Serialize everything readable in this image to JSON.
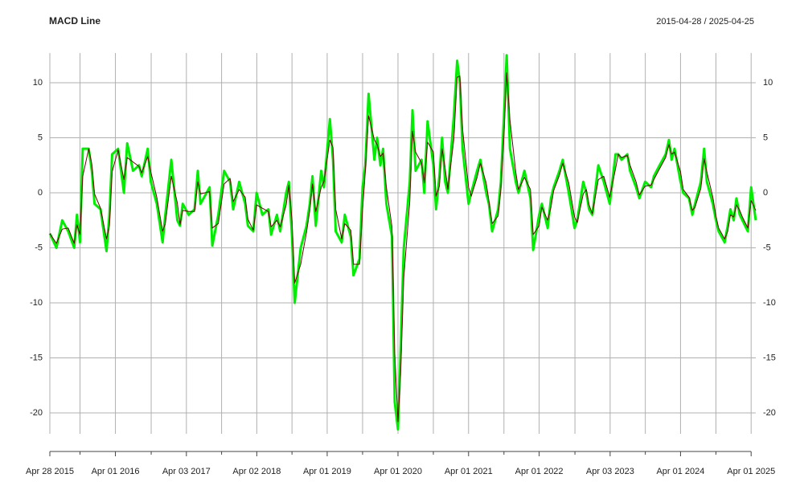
{
  "chart_data": {
    "type": "line",
    "title": "MACD Line",
    "subtitle": "2015-04-28 / 2025-04-25",
    "x": [
      "2015-04-28",
      "2015-06-01",
      "2015-07-01",
      "2015-08-01",
      "2015-09-01",
      "2015-09-15",
      "2015-10-01",
      "2015-10-15",
      "2015-11-15",
      "2015-12-01",
      "2015-12-15",
      "2016-01-15",
      "2016-02-15",
      "2016-03-01",
      "2016-03-15",
      "2016-04-15",
      "2016-05-15",
      "2016-06-01",
      "2016-07-01",
      "2016-08-01",
      "2016-08-15",
      "2016-09-15",
      "2016-10-01",
      "2016-11-01",
      "2016-12-01",
      "2016-12-15",
      "2017-01-15",
      "2017-02-15",
      "2017-03-01",
      "2017-03-15",
      "2017-04-15",
      "2017-05-15",
      "2017-06-01",
      "2017-06-15",
      "2017-08-01",
      "2017-08-15",
      "2017-09-15",
      "2017-10-15",
      "2017-11-15",
      "2017-12-01",
      "2018-01-01",
      "2018-02-01",
      "2018-02-15",
      "2018-03-15",
      "2018-04-01",
      "2018-05-01",
      "2018-06-01",
      "2018-06-15",
      "2018-07-15",
      "2018-08-01",
      "2018-09-01",
      "2018-09-15",
      "2018-10-01",
      "2018-10-15",
      "2018-11-15",
      "2018-12-15",
      "2019-01-01",
      "2019-01-15",
      "2019-02-01",
      "2019-03-01",
      "2019-03-15",
      "2019-04-15",
      "2019-05-01",
      "2019-05-15",
      "2019-06-15",
      "2019-07-01",
      "2019-08-01",
      "2019-08-15",
      "2019-09-15",
      "2019-10-01",
      "2019-10-15",
      "2019-11-01",
      "2019-12-01",
      "2019-12-15",
      "2020-01-01",
      "2020-01-15",
      "2020-02-01",
      "2020-03-01",
      "2020-03-15",
      "2020-04-01",
      "2020-04-15",
      "2020-05-01",
      "2020-06-01",
      "2020-06-15",
      "2020-07-01",
      "2020-08-01",
      "2020-08-15",
      "2020-09-01",
      "2020-10-01",
      "2020-10-15",
      "2020-11-01",
      "2020-11-15",
      "2020-12-01",
      "2020-12-15",
      "2021-01-15",
      "2021-02-01",
      "2021-02-15",
      "2021-03-01",
      "2021-04-01",
      "2021-04-15",
      "2021-05-15",
      "2021-06-01",
      "2021-07-01",
      "2021-07-15",
      "2021-08-01",
      "2021-09-01",
      "2021-09-15",
      "2021-10-01",
      "2021-10-15",
      "2021-11-01",
      "2021-12-01",
      "2021-12-15",
      "2022-01-15",
      "2022-02-15",
      "2022-03-01",
      "2022-04-01",
      "2022-04-15",
      "2022-05-15",
      "2022-06-01",
      "2022-06-15",
      "2022-07-15",
      "2022-08-01",
      "2022-09-01",
      "2022-10-01",
      "2022-10-15",
      "2022-11-15",
      "2022-12-01",
      "2022-12-15",
      "2023-01-01",
      "2023-02-01",
      "2023-03-01",
      "2023-04-01",
      "2023-05-01",
      "2023-05-15",
      "2023-06-01",
      "2023-07-01",
      "2023-07-15",
      "2023-08-15",
      "2023-09-01",
      "2023-10-01",
      "2023-11-01",
      "2023-11-15",
      "2023-12-15",
      "2024-01-15",
      "2024-02-01",
      "2024-02-15",
      "2024-03-01",
      "2024-04-01",
      "2024-04-15",
      "2024-05-15",
      "2024-06-01",
      "2024-06-15",
      "2024-07-15",
      "2024-08-01",
      "2024-08-15",
      "2024-09-15",
      "2024-10-01",
      "2024-10-15",
      "2024-11-15",
      "2024-12-01",
      "2024-12-15",
      "2025-01-01",
      "2025-01-15",
      "2025-02-01",
      "2025-02-15",
      "2025-03-15",
      "2025-04-01",
      "2025-04-25"
    ],
    "series": [
      {
        "color": "#00ee00",
        "width": 3,
        "values": [
          -3.7,
          -5,
          -2.5,
          -3.5,
          -5,
          -2,
          -4.5,
          4,
          4,
          2,
          -1,
          -1.5,
          -5.3,
          -2,
          3.5,
          4,
          0,
          4.5,
          2,
          2.5,
          1.5,
          4,
          1,
          -1,
          -4.5,
          -2,
          3,
          -2.5,
          -3,
          -1,
          -2,
          -1.5,
          2,
          -1,
          0.5,
          -4.8,
          -2,
          2,
          1,
          -1.5,
          1,
          -1,
          -3,
          -3.5,
          0,
          -2,
          -1.5,
          -3.8,
          -2,
          -3.5,
          0,
          1,
          -4,
          -10,
          -5,
          -3,
          -1,
          1.5,
          -3,
          2,
          0.5,
          6.7,
          3,
          -3.5,
          -4.5,
          -2,
          -4,
          -7.5,
          -6,
          0.5,
          2.5,
          9,
          3,
          5,
          2.5,
          4,
          -1,
          -4,
          -19,
          -21.5,
          -14,
          -5,
          1,
          7.5,
          2,
          3,
          0,
          6.5,
          2.5,
          -1.5,
          1.5,
          5,
          1,
          0,
          7,
          12,
          10,
          4,
          -1,
          0,
          2,
          3,
          0,
          -1,
          -3.5,
          -1.5,
          1,
          7,
          12.5,
          4,
          1,
          0,
          2,
          -0.5,
          -5.2,
          -2,
          -1,
          -3.2,
          -0.5,
          0.5,
          2,
          3,
          0,
          -3.2,
          -2.5,
          1,
          0,
          -1.5,
          -2,
          2.5,
          1,
          -1,
          3.5,
          3.5,
          3,
          3.5,
          2,
          0.5,
          -0.5,
          1,
          0.5,
          1.5,
          2.5,
          3.5,
          4.8,
          3,
          4,
          1,
          0,
          -0.5,
          -2,
          -1,
          1,
          4,
          1,
          -1,
          -2.5,
          -3.5,
          -4.5,
          -3,
          -1.5,
          -2.5,
          -0.5,
          -2,
          -2.5,
          -3.5,
          0.5,
          -2.5
        ]
      },
      {
        "color": "#660000",
        "width": 1,
        "values": [
          -3.7,
          -4.6,
          -3.3,
          -3.2,
          -4.6,
          -2.9,
          -3.8,
          1.5,
          4,
          2.6,
          -0.1,
          -1.4,
          -4.2,
          -3,
          1.9,
          3.9,
          1.2,
          3.2,
          2.8,
          2.4,
          1.8,
          3.3,
          1.9,
          -0.4,
          -3.5,
          -2.8,
          1.5,
          -0.9,
          -2.9,
          -1.6,
          -1.7,
          -1.7,
          1,
          -0.1,
          0.1,
          -3.2,
          -2.8,
          0.8,
          1.3,
          -0.8,
          0.3,
          -0.4,
          -2.4,
          -3.4,
          -1.1,
          -1.4,
          -1.7,
          -3.1,
          -2.5,
          -3.1,
          -1.1,
          0.7,
          -2.5,
          -8.2,
          -6.5,
          -3.6,
          -1.6,
          0.8,
          -1.7,
          0.5,
          1,
          4.8,
          4.1,
          -1.5,
          -4.2,
          -2.8,
          -3.4,
          -6.5,
          -6.5,
          -1.5,
          1.9,
          7,
          4.8,
          4.4,
          3.3,
          3.6,
          0.5,
          -3.1,
          -14.5,
          -20.8,
          -16.3,
          -7.7,
          -0.8,
          5.6,
          3.7,
          2.7,
          0.9,
          4.6,
          3.7,
          -0.3,
          0.6,
          4,
          2.2,
          0.3,
          4.9,
          10.5,
          10.6,
          5.8,
          0.5,
          -0.3,
          1.4,
          2.7,
          0.9,
          -0.7,
          -2.8,
          -2.1,
          0.3,
          5.2,
          10.9,
          6.6,
          1.9,
          0.3,
          1.4,
          0.3,
          -3.8,
          -3,
          -1.3,
          -2.5,
          -1.3,
          0.2,
          1.6,
          2.7,
          0.9,
          -2.2,
          -2.7,
          -0.1,
          0.3,
          -1.1,
          -1.9,
          1.2,
          1.5,
          -0.4,
          2.2,
          3.5,
          3.2,
          3.4,
          2.5,
          1,
          -0.2,
          0.6,
          0.7,
          1.2,
          2.2,
          3.2,
          4.4,
          3.5,
          3.7,
          1.9,
          0.3,
          -0.4,
          -1.6,
          -1.3,
          0.4,
          3.1,
          1.9,
          -0.4,
          -2.1,
          -3.2,
          -4.2,
          -3.5,
          -2,
          -2.2,
          -1.1,
          -1.6,
          -2.2,
          -3.2,
          -0.7,
          -1.6
        ]
      }
    ],
    "xlim": [
      "2015-04-28",
      "2025-04-25"
    ],
    "xticks": [
      {
        "value": "2015-04-28",
        "label": "Apr 28 2015"
      },
      {
        "value": "2016-04-01",
        "label": "Apr 01 2016"
      },
      {
        "value": "2017-04-03",
        "label": "Apr 03 2017"
      },
      {
        "value": "2018-04-02",
        "label": "Apr 02 2018"
      },
      {
        "value": "2019-04-01",
        "label": "Apr 01 2019"
      },
      {
        "value": "2020-04-01",
        "label": "Apr 01 2020"
      },
      {
        "value": "2021-04-01",
        "label": "Apr 01 2021"
      },
      {
        "value": "2022-04-01",
        "label": "Apr 01 2022"
      },
      {
        "value": "2023-04-03",
        "label": "Apr 03 2023"
      },
      {
        "value": "2024-04-01",
        "label": "Apr 01 2024"
      },
      {
        "value": "2025-04-01",
        "label": "Apr 01 2025"
      }
    ],
    "x_minor_ticks": [
      "2015-10-01",
      "2016-10-03",
      "2017-10-02",
      "2018-10-01",
      "2019-10-01",
      "2020-10-01",
      "2021-10-01",
      "2022-10-03",
      "2023-10-02",
      "2024-10-01"
    ],
    "ylim": [
      -21.9,
      12.7
    ],
    "yticks": [
      -20,
      -15,
      -10,
      -5,
      0,
      5,
      10
    ],
    "grid": true
  }
}
